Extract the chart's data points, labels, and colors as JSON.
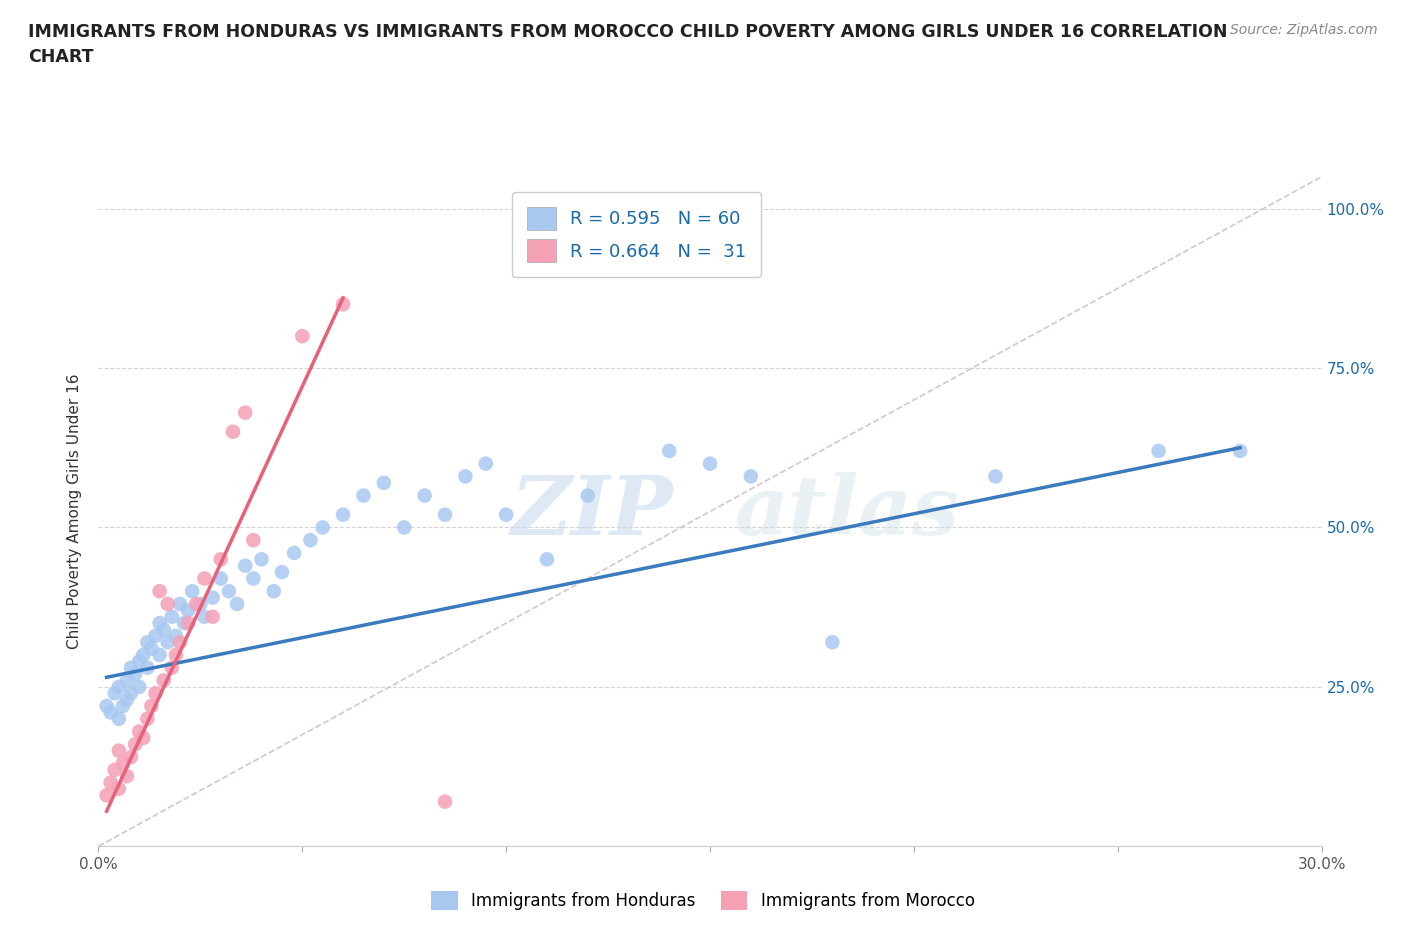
{
  "title": "IMMIGRANTS FROM HONDURAS VS IMMIGRANTS FROM MOROCCO CHILD POVERTY AMONG GIRLS UNDER 16 CORRELATION\nCHART",
  "source": "Source: ZipAtlas.com",
  "ylabel": "Child Poverty Among Girls Under 16",
  "xlim": [
    0.0,
    0.3
  ],
  "ylim": [
    0.0,
    1.05
  ],
  "xticks": [
    0.0,
    0.05,
    0.1,
    0.15,
    0.2,
    0.25,
    0.3
  ],
  "yticks": [
    0.0,
    0.25,
    0.5,
    0.75,
    1.0
  ],
  "yticklabels_right": [
    "",
    "25.0%",
    "50.0%",
    "75.0%",
    "100.0%"
  ],
  "honduras_color": "#a8c8f0",
  "morocco_color": "#f4a0b5",
  "honduras_line_color": "#3a7abf",
  "morocco_line_color": "#e8607a",
  "diagonal_color": "#c8b8b8",
  "R_honduras": 0.595,
  "N_honduras": 60,
  "R_morocco": 0.664,
  "N_morocco": 31,
  "watermark_zip": "ZIP",
  "watermark_atlas": "atlas",
  "honduras_scatter_x": [
    0.002,
    0.003,
    0.004,
    0.005,
    0.005,
    0.006,
    0.007,
    0.007,
    0.008,
    0.008,
    0.009,
    0.01,
    0.01,
    0.011,
    0.012,
    0.012,
    0.013,
    0.014,
    0.015,
    0.015,
    0.016,
    0.017,
    0.018,
    0.019,
    0.02,
    0.021,
    0.022,
    0.023,
    0.025,
    0.026,
    0.028,
    0.03,
    0.032,
    0.034,
    0.036,
    0.038,
    0.04,
    0.043,
    0.045,
    0.048,
    0.052,
    0.055,
    0.06,
    0.065,
    0.07,
    0.075,
    0.08,
    0.085,
    0.09,
    0.095,
    0.1,
    0.11,
    0.12,
    0.14,
    0.15,
    0.16,
    0.18,
    0.22,
    0.26,
    0.28
  ],
  "honduras_scatter_y": [
    0.22,
    0.21,
    0.24,
    0.2,
    0.25,
    0.22,
    0.26,
    0.23,
    0.28,
    0.24,
    0.27,
    0.29,
    0.25,
    0.3,
    0.28,
    0.32,
    0.31,
    0.33,
    0.3,
    0.35,
    0.34,
    0.32,
    0.36,
    0.33,
    0.38,
    0.35,
    0.37,
    0.4,
    0.38,
    0.36,
    0.39,
    0.42,
    0.4,
    0.38,
    0.44,
    0.42,
    0.45,
    0.4,
    0.43,
    0.46,
    0.48,
    0.5,
    0.52,
    0.55,
    0.57,
    0.5,
    0.55,
    0.52,
    0.58,
    0.6,
    0.52,
    0.45,
    0.55,
    0.62,
    0.6,
    0.58,
    0.32,
    0.58,
    0.62,
    0.62
  ],
  "morocco_scatter_x": [
    0.002,
    0.003,
    0.004,
    0.005,
    0.005,
    0.006,
    0.007,
    0.008,
    0.009,
    0.01,
    0.011,
    0.012,
    0.013,
    0.014,
    0.015,
    0.016,
    0.017,
    0.018,
    0.019,
    0.02,
    0.022,
    0.024,
    0.026,
    0.028,
    0.03,
    0.033,
    0.036,
    0.038,
    0.05,
    0.06,
    0.085
  ],
  "morocco_scatter_y": [
    0.08,
    0.1,
    0.12,
    0.09,
    0.15,
    0.13,
    0.11,
    0.14,
    0.16,
    0.18,
    0.17,
    0.2,
    0.22,
    0.24,
    0.4,
    0.26,
    0.38,
    0.28,
    0.3,
    0.32,
    0.35,
    0.38,
    0.42,
    0.36,
    0.45,
    0.65,
    0.68,
    0.48,
    0.8,
    0.85,
    0.07
  ],
  "honduras_line_x": [
    0.002,
    0.28
  ],
  "honduras_line_y": [
    0.265,
    0.625
  ],
  "morocco_line_x": [
    0.002,
    0.06
  ],
  "morocco_line_y": [
    0.055,
    0.86
  ]
}
